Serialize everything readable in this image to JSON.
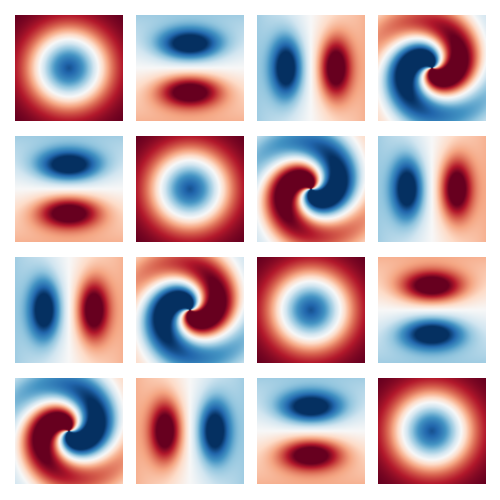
{
  "colormap": {
    "name": "RdBu",
    "stops": [
      "#67001f",
      "#b2182b",
      "#d6604d",
      "#f4a582",
      "#fddbc7",
      "#f7f7f7",
      "#d1e5f0",
      "#92c5de",
      "#4393c3",
      "#2166ac",
      "#053061"
    ]
  },
  "grid": {
    "rows": 4,
    "cols": 4
  },
  "panels": [
    {
      "pattern": "ring",
      "sign": 1,
      "rotation": 0
    },
    {
      "pattern": "dipole",
      "sign": 1,
      "rotation": 90
    },
    {
      "pattern": "dipole",
      "sign": 1,
      "rotation": 0
    },
    {
      "pattern": "swirl",
      "sign": 1,
      "rotation": 0
    },
    {
      "pattern": "dipole",
      "sign": 1,
      "rotation": 90
    },
    {
      "pattern": "ring",
      "sign": 1,
      "rotation": 0
    },
    {
      "pattern": "swirl",
      "sign": -1,
      "rotation": 0
    },
    {
      "pattern": "dipole",
      "sign": 1,
      "rotation": 0
    },
    {
      "pattern": "dipole",
      "sign": 1,
      "rotation": 0
    },
    {
      "pattern": "swirl",
      "sign": 1,
      "rotation": 0
    },
    {
      "pattern": "ring",
      "sign": 1,
      "rotation": 0
    },
    {
      "pattern": "dipole",
      "sign": -1,
      "rotation": 90
    },
    {
      "pattern": "swirl",
      "sign": 1,
      "rotation": 180
    },
    {
      "pattern": "dipole",
      "sign": -1,
      "rotation": 0
    },
    {
      "pattern": "dipole",
      "sign": 1,
      "rotation": 90
    },
    {
      "pattern": "ring",
      "sign": 1,
      "rotation": 0
    }
  ]
}
